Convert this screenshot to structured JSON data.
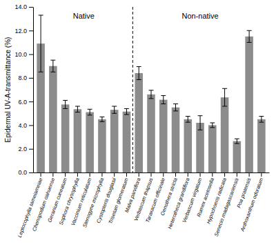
{
  "chart_data": {
    "type": "bar",
    "categories": [
      "Leptocophylla tameiameiae",
      "Chenopodium oahuense",
      "Geranium cuneatum",
      "Sophora chrysophylla",
      "Vaccinium reticulatum",
      "Stenogyne microphylla",
      "Cystopteris douglasii",
      "Trisetum glomeratum",
      "Malva parviflora",
      "Verbascum thapsus",
      "Taraxacum officinale",
      "Oenothera stricta",
      "Heterotheca grandiflora",
      "Verbascum virgatum",
      "Rumex acetosella",
      "Hypochoeris radicata",
      "Senecio madagascariensis",
      "Poa pratensis",
      "Anthoxanthum odoratum"
    ],
    "values": [
      10.9,
      9.0,
      5.75,
      5.35,
      5.1,
      4.5,
      5.3,
      5.15,
      8.4,
      6.6,
      6.15,
      5.5,
      4.5,
      4.2,
      4.0,
      6.35,
      2.65,
      11.5,
      4.5
    ],
    "errors": [
      2.4,
      0.5,
      0.35,
      0.25,
      0.25,
      0.2,
      0.3,
      0.25,
      0.55,
      0.35,
      0.35,
      0.3,
      0.25,
      0.6,
      0.2,
      0.75,
      0.2,
      0.5,
      0.25
    ],
    "color": "#8c8c8c",
    "y_label": "Epidermal UV-A-transmittance (%)",
    "ylim": [
      0,
      14.0
    ],
    "yticks": [
      {
        "value": 0.0,
        "label": "0.0"
      },
      {
        "value": 2.0,
        "label": "2.0"
      },
      {
        "value": 4.0,
        "label": "4.0"
      },
      {
        "value": 6.0,
        "label": "6.0"
      },
      {
        "value": 8.0,
        "label": "8.0"
      },
      {
        "value": 10.0,
        "label": "10.0"
      },
      {
        "value": 12.0,
        "label": "12.0"
      },
      {
        "value": 14.0,
        "label": "14.0"
      }
    ],
    "groups": [
      {
        "label": "Native",
        "count": 8,
        "label_y": 13.5
      },
      {
        "label": "Non-native",
        "count": 11,
        "label_y": 13.5
      }
    ],
    "grid": false
  }
}
